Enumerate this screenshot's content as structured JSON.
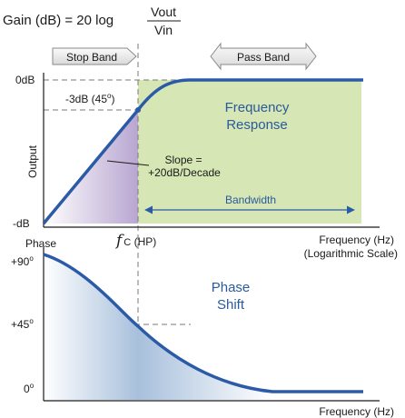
{
  "formula": {
    "lhs": "Gain (dB) = 20 log",
    "numerator": "Vout",
    "denominator": "Vin"
  },
  "bands": {
    "stop": "Stop Band",
    "pass": "Pass Band"
  },
  "gain_plot": {
    "y_top": "0dB",
    "y_bottom": "-dB",
    "y_label": "Output",
    "cutoff_point": "-3dB (45",
    "cutoff_point_sup": "o",
    "cutoff_point_close": ")",
    "title_line1": "Frequency",
    "title_line2": "Response",
    "slope_line1": "Slope =",
    "slope_line2": "+20dB/Decade",
    "bandwidth": "Bandwidth",
    "x_label_line1": "Frequency (Hz)",
    "x_label_line2": "(Logarithmic Scale)"
  },
  "cutoff": {
    "symbol": "f",
    "subscript": "C",
    "suffix": " (HP)"
  },
  "phase_plot": {
    "y_label": "Phase",
    "tick_90": "+90",
    "tick_45": "+45",
    "tick_0": "0",
    "degree_sup": "o",
    "title_line1": "Phase",
    "title_line2": "Shift",
    "x_label": "Frequency (Hz)"
  },
  "colors": {
    "curve": "#2b5ba7",
    "pass_fill": "#d6e6b4",
    "stop_fill": "#b8a6d0",
    "phase_fill": "#a8c0dc",
    "text_accent": "#2a5a9c",
    "dash": "#7a7a7a"
  }
}
